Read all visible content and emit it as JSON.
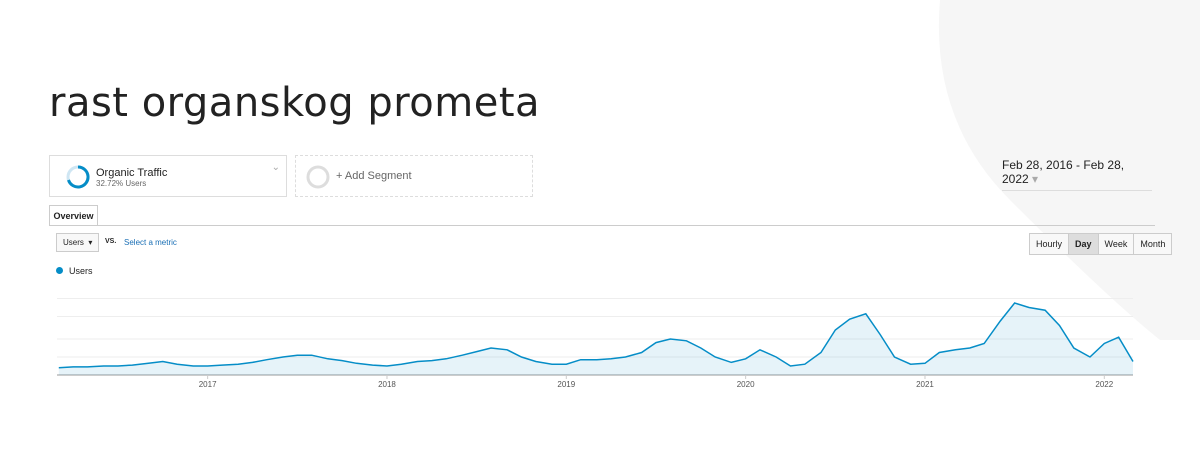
{
  "header": {
    "title": "rast organskog prometa"
  },
  "segments": {
    "active": {
      "name": "Organic Traffic",
      "share": "32.72% Users"
    },
    "add": "+ Add Segment"
  },
  "date_range": "Feb 28, 2016 - Feb 28, 2022",
  "tab": "Overview",
  "controls": {
    "metric": "Users",
    "vs": "VS.",
    "select": "Select a metric",
    "granularity": [
      "Hourly",
      "Day",
      "Week",
      "Month"
    ]
  },
  "chart_data": {
    "type": "line",
    "x": [
      2016.17,
      2016.25,
      2016.33,
      2016.42,
      2016.5,
      2016.58,
      2016.67,
      2016.75,
      2016.83,
      2016.92,
      2017.0,
      2017.08,
      2017.17,
      2017.25,
      2017.33,
      2017.42,
      2017.5,
      2017.58,
      2017.67,
      2017.75,
      2017.83,
      2017.92,
      2018.0,
      2018.08,
      2018.17,
      2018.25,
      2018.33,
      2018.42,
      2018.5,
      2018.58,
      2018.67,
      2018.75,
      2018.83,
      2018.92,
      2019.0,
      2019.08,
      2019.17,
      2019.25,
      2019.33,
      2019.42,
      2019.5,
      2019.58,
      2019.67,
      2019.75,
      2019.83,
      2019.92,
      2020.0,
      2020.08,
      2020.17,
      2020.25,
      2020.33,
      2020.42,
      2020.5,
      2020.58,
      2020.67,
      2020.75,
      2020.83,
      2020.92,
      2021.0,
      2021.08,
      2021.17,
      2021.25,
      2021.33,
      2021.42,
      2021.5,
      2021.58,
      2021.67,
      2021.75,
      2021.83,
      2021.92,
      2022.0,
      2022.08,
      2022.16
    ],
    "series": [
      {
        "name": "Users",
        "color": "#058dc7",
        "values": [
          8,
          9,
          9,
          10,
          10,
          11,
          13,
          15,
          12,
          10,
          10,
          11,
          12,
          14,
          17,
          20,
          22,
          22,
          18,
          16,
          13,
          11,
          10,
          12,
          15,
          16,
          18,
          22,
          26,
          30,
          28,
          20,
          15,
          12,
          12,
          17,
          17,
          18,
          20,
          25,
          36,
          40,
          38,
          30,
          20,
          14,
          18,
          28,
          20,
          10,
          12,
          25,
          50,
          62,
          68,
          45,
          20,
          12,
          13,
          25,
          28,
          30,
          35,
          60,
          80,
          75,
          72,
          55,
          30,
          20,
          35,
          42,
          15
        ]
      }
    ],
    "xlim": [
      2016.16,
      2022.16
    ],
    "xticks": [
      2017,
      2018,
      2019,
      2020,
      2021,
      2022
    ],
    "ylim": [
      0,
      100
    ],
    "grid": true
  }
}
